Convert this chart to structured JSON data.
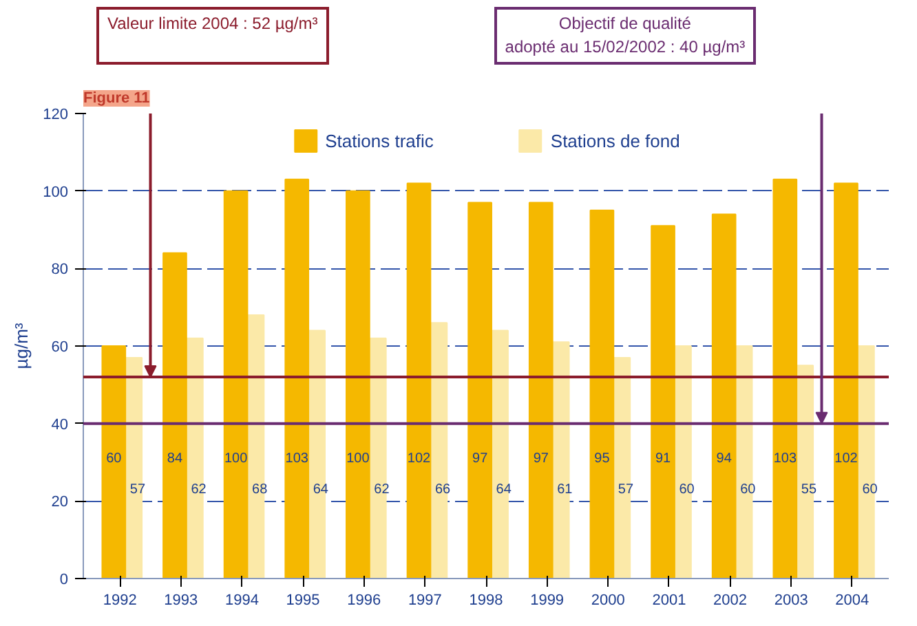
{
  "chart_data": {
    "type": "bar",
    "title": "Figure 11",
    "ylabel": "µg/m³",
    "categories": [
      "1992",
      "1993",
      "1994",
      "1995",
      "1996",
      "1997",
      "1998",
      "1999",
      "2000",
      "2001",
      "2002",
      "2003",
      "2004"
    ],
    "series": [
      {
        "name": "Stations trafic",
        "color": "#f5b800",
        "values": [
          60,
          84,
          100,
          103,
          100,
          102,
          97,
          97,
          95,
          91,
          94,
          103,
          102
        ]
      },
      {
        "name": "Stations de fond",
        "color": "#fbe9a8",
        "values": [
          57,
          62,
          68,
          64,
          62,
          66,
          64,
          61,
          57,
          60,
          60,
          55,
          60
        ]
      }
    ],
    "ylim": [
      0,
      120
    ],
    "yticks": [
      0,
      20,
      40,
      60,
      80,
      100,
      120
    ],
    "grid": "y",
    "legend": "top",
    "data_labels": true,
    "ref_lines": [
      {
        "axis": "y",
        "value": 52,
        "label": "Valeur limite 2004 : 52 µg/m³",
        "color": "#8b1c2c"
      },
      {
        "axis": "y",
        "value": 40,
        "label": "Objectif de qualité adopté au 15/02/2002 : 40 µg/m³",
        "color": "#6a2c70"
      }
    ]
  }
}
